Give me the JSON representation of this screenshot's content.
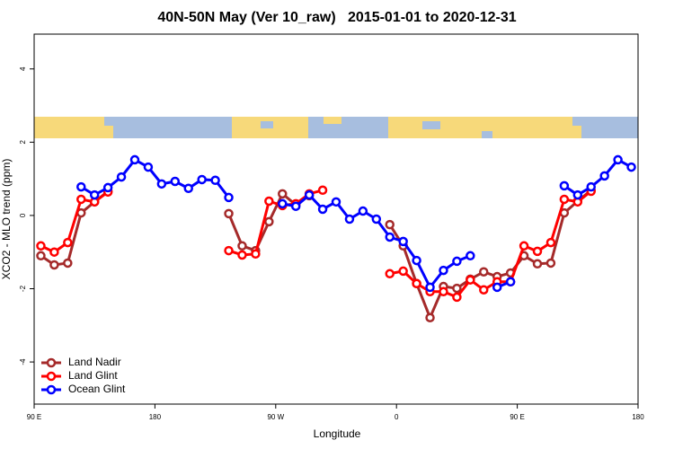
{
  "chart_data": {
    "type": "line",
    "title": "40N-50N May (Ver 10_raw)   2015-01-01 to 2020-12-31",
    "xlabel": "Longitude",
    "ylabel": "XCO2 - MLO trend (ppm)",
    "x": [
      95,
      105,
      115,
      125,
      135,
      145,
      155,
      165,
      175,
      185,
      195,
      205,
      215,
      225,
      235,
      245,
      255,
      265,
      275,
      285,
      295,
      305,
      315,
      325,
      335,
      345,
      355,
      365,
      375,
      385,
      395,
      405,
      415,
      425,
      435,
      445,
      455,
      465,
      475,
      485,
      495,
      505,
      515,
      525,
      535
    ],
    "series": [
      {
        "name": "Land Nadir",
        "color": "#a52a2a",
        "values": [
          -1.1,
          -1.35,
          -1.3,
          0.07,
          0.37,
          0.66,
          null,
          null,
          null,
          null,
          null,
          null,
          null,
          null,
          0.05,
          -0.83,
          -0.96,
          -0.17,
          0.59,
          0.29,
          0.54,
          null,
          null,
          null,
          null,
          null,
          -0.25,
          -0.83,
          -1.86,
          -2.79,
          -1.94,
          -1.99,
          -1.74,
          -1.54,
          -1.67,
          -1.57,
          -1.1,
          -1.32,
          -1.3,
          0.07,
          0.39,
          0.69,
          null,
          null,
          null
        ]
      },
      {
        "name": "Land Glint",
        "color": "#ff0000",
        "values": [
          -0.83,
          -1.0,
          -0.74,
          0.44,
          0.37,
          0.64,
          null,
          null,
          null,
          null,
          null,
          null,
          null,
          null,
          -0.96,
          -1.08,
          -1.05,
          0.39,
          0.27,
          0.32,
          0.59,
          0.69,
          null,
          null,
          null,
          null,
          -1.59,
          -1.52,
          -1.86,
          -2.08,
          -2.08,
          -2.23,
          -1.76,
          -2.03,
          -1.81,
          -1.81,
          -0.83,
          -0.98,
          -0.74,
          0.44,
          0.37,
          0.66,
          null,
          null,
          null
        ]
      },
      {
        "name": "Ocean Glint",
        "color": "#0000ff",
        "values": [
          null,
          null,
          null,
          0.78,
          0.56,
          0.76,
          1.05,
          1.52,
          1.32,
          0.86,
          0.93,
          0.74,
          0.98,
          0.96,
          0.49,
          null,
          null,
          null,
          0.32,
          0.25,
          0.56,
          0.17,
          0.37,
          -0.1,
          0.12,
          -0.1,
          -0.59,
          -0.71,
          -1.23,
          -1.96,
          -1.5,
          -1.25,
          -1.1,
          null,
          -1.96,
          -1.81,
          null,
          null,
          null,
          0.81,
          0.56,
          0.78,
          1.08,
          1.52,
          1.32
        ]
      }
    ],
    "xlim": [
      90,
      540
    ],
    "xticks": [
      {
        "value": 90,
        "label": "90 E"
      },
      180,
      {
        "value": 270,
        "label": "90 W"
      },
      {
        "value": 360,
        "label": "0"
      },
      {
        "value": 450,
        "label": "90 E"
      },
      {
        "value": 540,
        "label": "180"
      }
    ],
    "ylim": [
      -5.15,
      4.95
    ],
    "yticks": [
      -4,
      -2,
      0,
      2,
      4
    ],
    "legend": "bottomleft"
  }
}
